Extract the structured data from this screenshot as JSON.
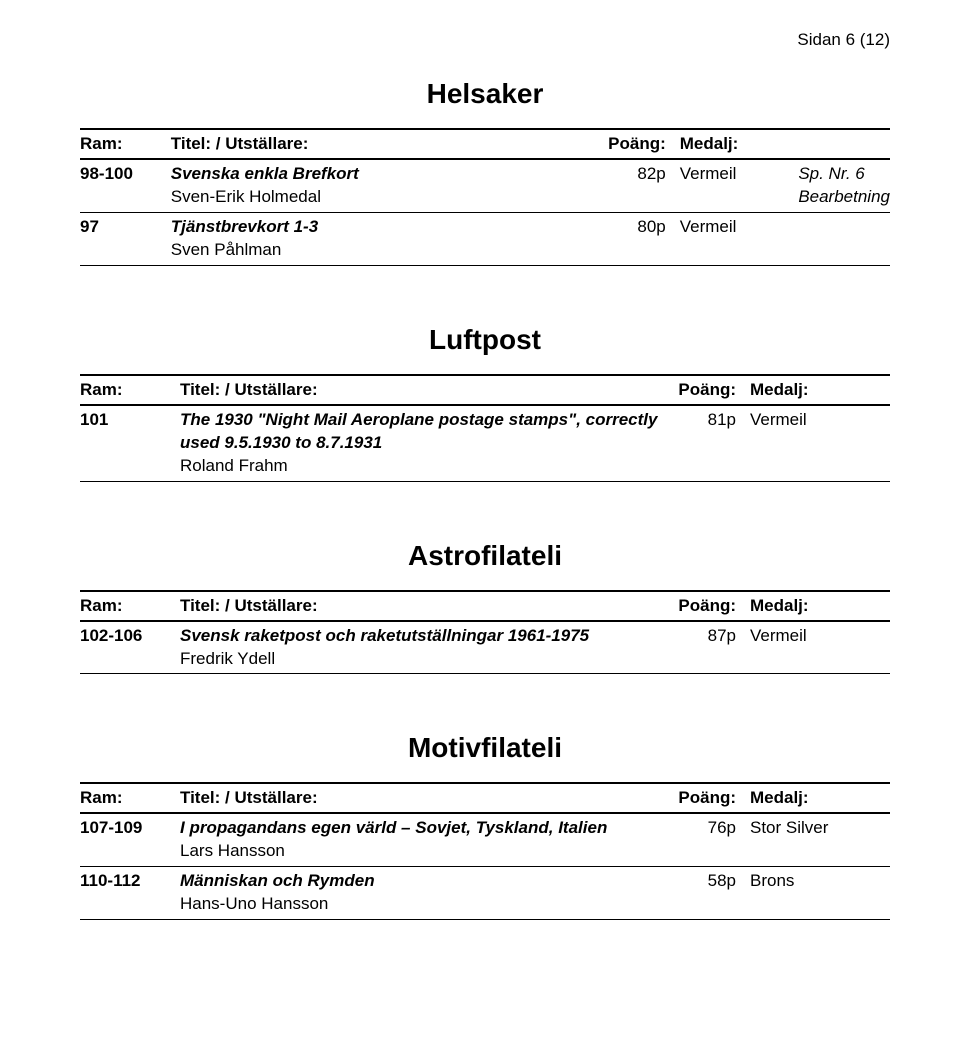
{
  "page_header": "Sidan 6 (12)",
  "column_headers": {
    "ram": "Ram:",
    "titel": "Titel: / Utställare:",
    "poang": "Poäng:",
    "medalj": "Medalj:"
  },
  "sections": [
    {
      "title": "Helsaker",
      "rows": [
        {
          "ram": "98-100",
          "title_italic": "Svenska enkla Brefkort",
          "subtitle": "Sven-Erik Holmedal",
          "poang": "82p",
          "medalj": "Vermeil",
          "extra_line1": "Sp. Nr. 6",
          "extra_line2": "Bearbetning"
        },
        {
          "ram": "97",
          "title_italic": "Tjänstbrevkort 1-3",
          "subtitle": "Sven Påhlman",
          "poang": "80p",
          "medalj": "Vermeil",
          "extra_line1": "",
          "extra_line2": ""
        }
      ]
    },
    {
      "title": "Luftpost",
      "rows": [
        {
          "ram": "101",
          "title_italic": "The 1930 \"Night Mail Aeroplane postage stamps\", correctly used 9.5.1930 to 8.7.1931",
          "subtitle": "Roland Frahm",
          "poang": "81p",
          "medalj": "Vermeil",
          "extra_line1": "",
          "extra_line2": ""
        }
      ]
    },
    {
      "title": "Astrofilateli",
      "rows": [
        {
          "ram": "102-106",
          "title_italic": "Svensk raketpost och raketutställningar 1961-1975",
          "subtitle": "Fredrik Ydell",
          "poang": "87p",
          "medalj": "Vermeil",
          "extra_line1": "",
          "extra_line2": ""
        }
      ]
    },
    {
      "title": "Motivfilateli",
      "rows": [
        {
          "ram": "107-109",
          "title_italic": "I propagandans egen värld – Sovjet, Tyskland, Italien",
          "subtitle": "Lars Hansson",
          "poang": "76p",
          "medalj": "Stor Silver",
          "extra_line1": "",
          "extra_line2": ""
        },
        {
          "ram": "110-112",
          "title_italic": "Människan och Rymden",
          "subtitle": "Hans-Uno Hansson",
          "poang": "58p",
          "medalj": "Brons",
          "extra_line1": "",
          "extra_line2": ""
        }
      ]
    }
  ]
}
